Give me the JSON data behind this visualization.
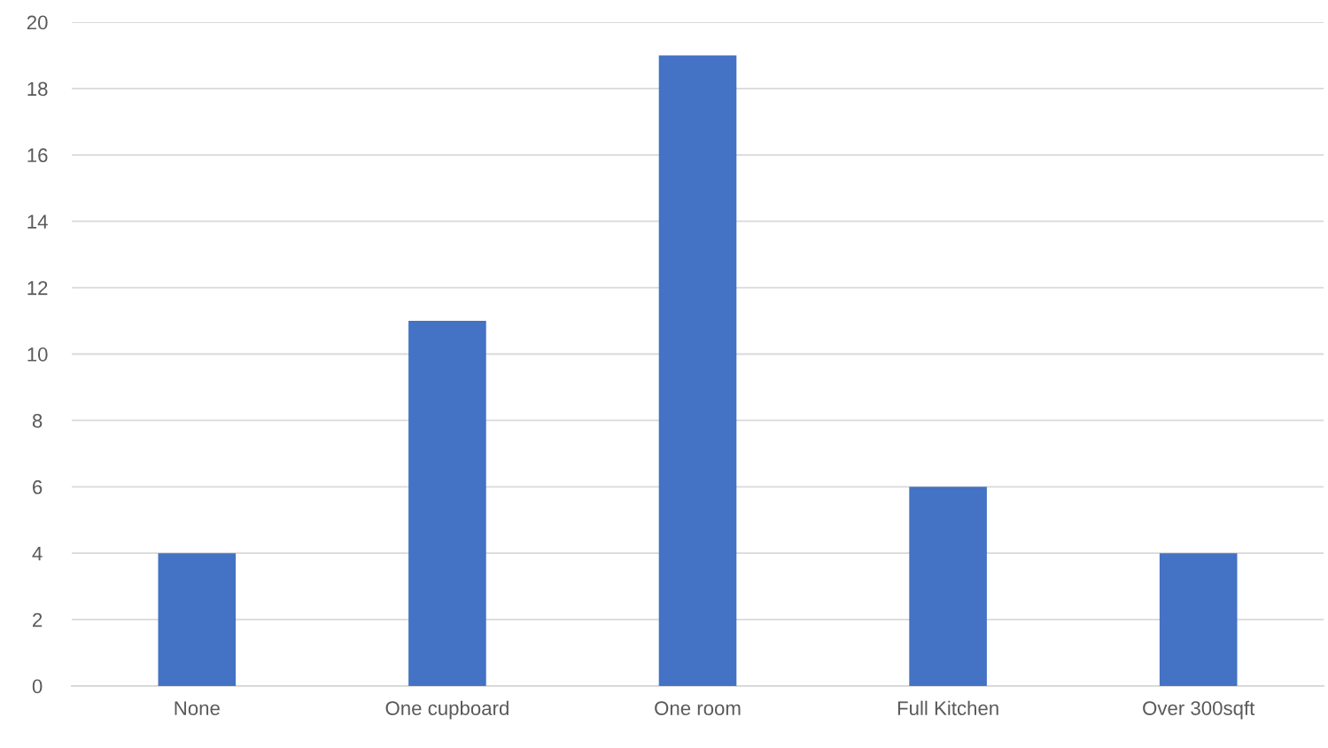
{
  "chart_data": {
    "type": "bar",
    "categories": [
      "None",
      "One cupboard",
      "One room",
      "Full Kitchen",
      "Over 300sqft"
    ],
    "values": [
      4,
      11,
      19,
      6,
      4
    ],
    "color": "#4472c4",
    "ylim": [
      0,
      20
    ],
    "yticks": [
      0,
      2,
      4,
      6,
      8,
      10,
      12,
      14,
      16,
      18,
      20
    ],
    "grid": "y",
    "legend": false
  }
}
